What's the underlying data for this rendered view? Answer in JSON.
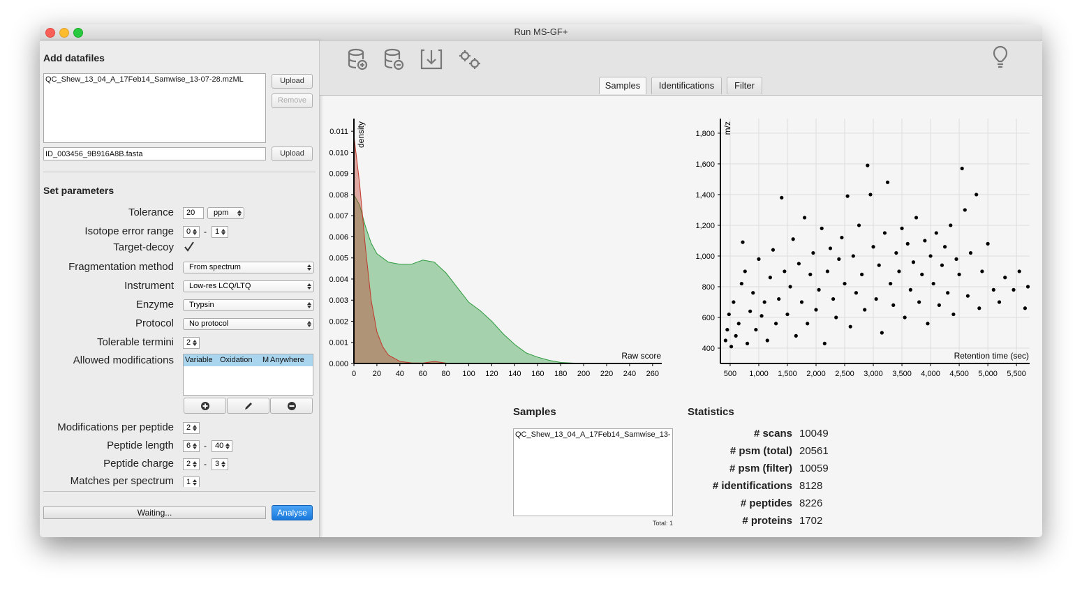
{
  "window": {
    "title": "Run MS-GF+"
  },
  "datafiles": {
    "heading": "Add datafiles",
    "files": [
      "QC_Shew_13_04_A_17Feb14_Samwise_13-07-28.mzML"
    ],
    "upload": "Upload",
    "remove": "Remove",
    "fasta": "ID_003456_9B916A8B.fasta",
    "fasta_upload": "Upload"
  },
  "parameters": {
    "heading": "Set parameters",
    "tolerance": {
      "label": "Tolerance",
      "value": 20,
      "unit": "ppm"
    },
    "isotope": {
      "label": "Isotope error range",
      "min": 0,
      "sep": "-",
      "max": 1
    },
    "target_decoy": {
      "label": "Target-decoy"
    },
    "fragmentation": {
      "label": "Fragmentation method",
      "value": "From spectrum"
    },
    "instrument": {
      "label": "Instrument",
      "value": "Low-res LCQ/LTQ"
    },
    "enzyme": {
      "label": "Enzyme",
      "value": "Trypsin"
    },
    "protocol": {
      "label": "Protocol",
      "value": "No protocol"
    },
    "termini": {
      "label": "Tolerable termini",
      "value": 2
    },
    "modifications": {
      "label": "Allowed modifications",
      "rows": [
        [
          "Variable",
          "Oxidation",
          "M",
          "Anywhere"
        ]
      ]
    },
    "mods_per_peptide": {
      "label": "Modifications per peptide",
      "value": 2
    },
    "peptide_length": {
      "label": "Peptide length",
      "min": 6,
      "sep": "-",
      "max": 40
    },
    "peptide_charge": {
      "label": "Peptide charge",
      "min": 2,
      "sep": "-",
      "max": 3
    },
    "matches": {
      "label": "Matches per spectrum",
      "value": 1
    }
  },
  "footer": {
    "status": "Waiting...",
    "analyse": "Analyse"
  },
  "tabs": [
    "Samples",
    "Identifications",
    "Filter"
  ],
  "chart_data": [
    {
      "type": "area",
      "y_label": "density",
      "x_label": "Raw score",
      "x": [
        0,
        5,
        10,
        15,
        20,
        25,
        30,
        40,
        50,
        60,
        70,
        80,
        90,
        100,
        110,
        120,
        130,
        140,
        150,
        160,
        170,
        180,
        190,
        200
      ],
      "series": [
        {
          "color": "#2e9b3e",
          "values": [
            0.008,
            0.0075,
            0.0065,
            0.0057,
            0.0052,
            0.005,
            0.0048,
            0.0047,
            0.0047,
            0.0049,
            0.0048,
            0.0043,
            0.0036,
            0.0029,
            0.0025,
            0.002,
            0.0014,
            0.0009,
            0.0005,
            0.0003,
            0.00015,
            5e-05,
            2e-05,
            0
          ]
        },
        {
          "color": "#c0392b",
          "values": [
            0.0108,
            0.0085,
            0.0055,
            0.003,
            0.0015,
            0.0008,
            0.0004,
            0.0001,
            3e-05,
            2e-05,
            0.0001,
            2e-05,
            0,
            0,
            0,
            0,
            0,
            0,
            0,
            0,
            0,
            0,
            0,
            0
          ]
        }
      ],
      "xlim": [
        0,
        268
      ],
      "xticks": [
        0,
        20,
        40,
        60,
        80,
        100,
        120,
        140,
        160,
        180,
        200,
        220,
        240,
        260
      ],
      "ylim": [
        0,
        0.0116
      ],
      "yticks": [
        {
          "value": 0,
          "label": "0.000"
        },
        {
          "value": 0.001,
          "label": "0.001"
        },
        {
          "value": 0.002,
          "label": "0.002"
        },
        {
          "value": 0.003,
          "label": "0.003"
        },
        {
          "value": 0.004,
          "label": "0.004"
        },
        {
          "value": 0.005,
          "label": "0.005"
        },
        {
          "value": 0.006,
          "label": "0.006"
        },
        {
          "value": 0.007,
          "label": "0.007"
        },
        {
          "value": 0.008,
          "label": "0.008"
        },
        {
          "value": 0.009,
          "label": "0.009"
        },
        {
          "value": 0.01,
          "label": "0.010"
        },
        {
          "value": 0.011,
          "label": "0.011"
        }
      ]
    },
    {
      "type": "scatter",
      "y_label": "m/z",
      "x_label": "Retention time (sec)",
      "color": "#000000",
      "grid": true,
      "x": [
        420,
        450,
        480,
        520,
        560,
        600,
        650,
        700,
        720,
        760,
        800,
        850,
        900,
        950,
        1000,
        1050,
        1100,
        1150,
        1200,
        1250,
        1300,
        1350,
        1400,
        1450,
        1500,
        1550,
        1600,
        1650,
        1700,
        1750,
        1800,
        1850,
        1900,
        1950,
        2000,
        2050,
        2100,
        2150,
        2200,
        2250,
        2300,
        2350,
        2400,
        2450,
        2500,
        2550,
        2600,
        2650,
        2700,
        2750,
        2800,
        2850,
        2900,
        2950,
        3000,
        3050,
        3100,
        3150,
        3200,
        3250,
        3300,
        3350,
        3400,
        3450,
        3500,
        3550,
        3600,
        3650,
        3700,
        3750,
        3800,
        3850,
        3900,
        3950,
        4000,
        4050,
        4100,
        4150,
        4200,
        4250,
        4300,
        4350,
        4400,
        4450,
        4500,
        4550,
        4600,
        4650,
        4700,
        4800,
        4850,
        4900,
        5000,
        5100,
        5200,
        5300,
        5450,
        5550,
        5650,
        5700
      ],
      "values": [
        450,
        520,
        620,
        410,
        700,
        480,
        560,
        820,
        1090,
        900,
        430,
        640,
        760,
        520,
        980,
        610,
        700,
        450,
        860,
        1040,
        560,
        720,
        1380,
        900,
        620,
        800,
        1110,
        480,
        950,
        700,
        1250,
        560,
        880,
        1020,
        650,
        780,
        1180,
        430,
        900,
        1050,
        720,
        600,
        980,
        1120,
        820,
        1390,
        540,
        1000,
        760,
        1200,
        880,
        650,
        1590,
        1400,
        1060,
        720,
        940,
        500,
        1150,
        1480,
        820,
        680,
        1020,
        900,
        1180,
        600,
        1080,
        780,
        960,
        1250,
        700,
        880,
        1100,
        560,
        1000,
        820,
        1150,
        680,
        940,
        1060,
        760,
        1200,
        620,
        980,
        880,
        1570,
        1300,
        740,
        1020,
        1400,
        660,
        900,
        1080,
        780,
        700,
        860,
        780,
        900,
        660,
        800
      ],
      "xlim": [
        330,
        5730
      ],
      "xticks": [
        500,
        {
          "value": 1000,
          "label": "1,000"
        },
        {
          "value": 1500,
          "label": "1,500"
        },
        {
          "value": 2000,
          "label": "2,000"
        },
        {
          "value": 2500,
          "label": "2,500"
        },
        {
          "value": 3000,
          "label": "3,000"
        },
        {
          "value": 3500,
          "label": "3,500"
        },
        {
          "value": 4000,
          "label": "4,000"
        },
        {
          "value": 4500,
          "label": "4,500"
        },
        {
          "value": 5000,
          "label": "5,000"
        },
        {
          "value": 5500,
          "label": "5,500"
        }
      ],
      "ylim": [
        300,
        1895
      ],
      "yticks": [
        400,
        600,
        800,
        {
          "value": 1000,
          "label": "1,000"
        },
        {
          "value": 1200,
          "label": "1,200"
        },
        {
          "value": 1400,
          "label": "1,400"
        },
        {
          "value": 1600,
          "label": "1,600"
        },
        {
          "value": 1800,
          "label": "1,800"
        }
      ]
    }
  ],
  "samples": {
    "heading": "Samples",
    "items": [
      "QC_Shew_13_04_A_17Feb14_Samwise_13-"
    ],
    "total": "Total: 1"
  },
  "statistics": {
    "heading": "Statistics",
    "rows": [
      [
        "# scans",
        10049
      ],
      [
        "# psm (total)",
        20561
      ],
      [
        "# psm (filter)",
        10059
      ],
      [
        "# identifications",
        8128
      ],
      [
        "# peptides",
        8226
      ],
      [
        "# proteins",
        1702
      ]
    ]
  }
}
